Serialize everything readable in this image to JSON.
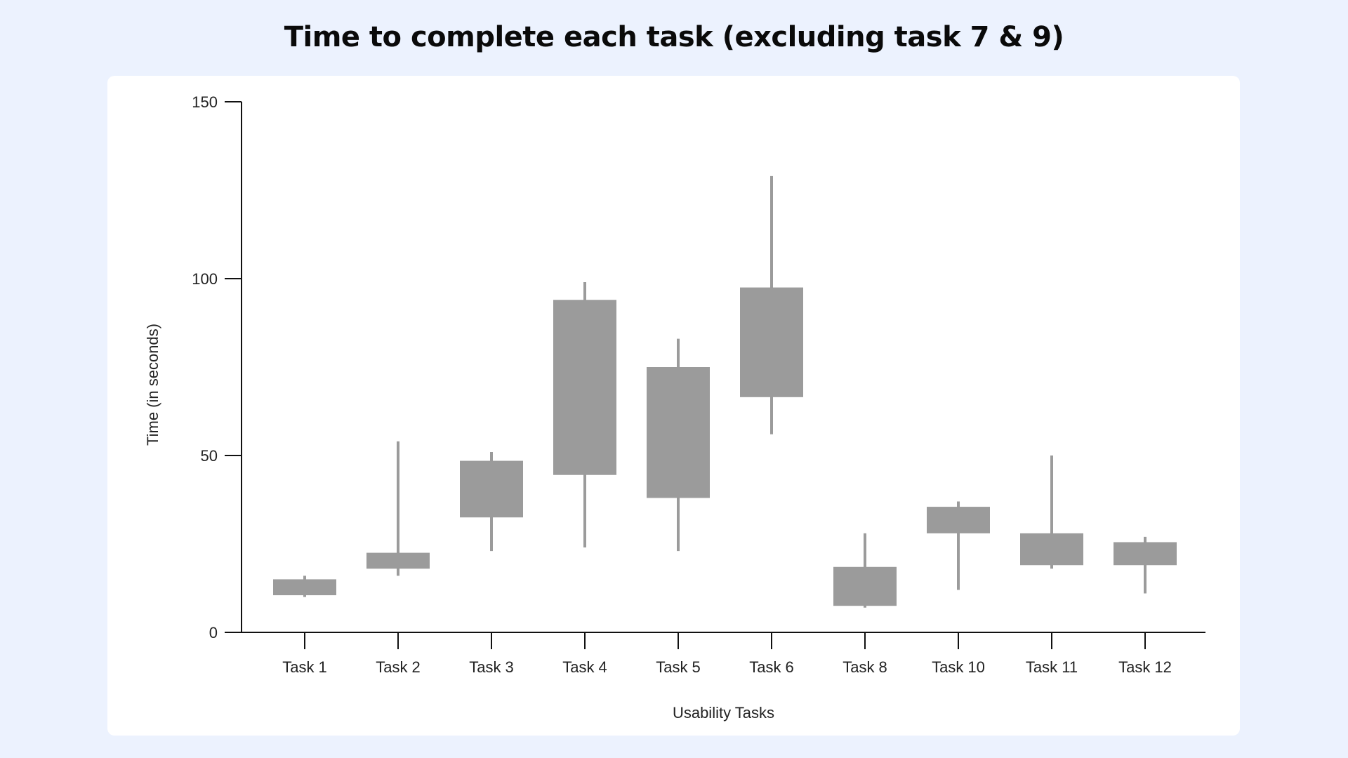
{
  "page": {
    "title": "Time to complete each task (excluding task 7 & 9)"
  },
  "chart_data": {
    "type": "box",
    "title": "Time to complete each task (excluding task 7 & 9)",
    "xlabel": "Usability Tasks",
    "ylabel": "Time (in seconds)",
    "ylim": [
      0,
      150
    ],
    "yticks": [
      0,
      50,
      100,
      150
    ],
    "grid": false,
    "box_color": "#9b9b9b",
    "categories": [
      "Task 1",
      "Task 2",
      "Task 3",
      "Task 4",
      "Task 5",
      "Task 6",
      "Task 8",
      "Task 10",
      "Task 11",
      "Task 12"
    ],
    "boxes": [
      {
        "min": 10,
        "q1": 10.5,
        "q3": 15,
        "max": 16
      },
      {
        "min": 16,
        "q1": 18,
        "q3": 22.5,
        "max": 54
      },
      {
        "min": 23,
        "q1": 32.5,
        "q3": 48.5,
        "max": 51
      },
      {
        "min": 24,
        "q1": 44.5,
        "q3": 94,
        "max": 99
      },
      {
        "min": 23,
        "q1": 38,
        "q3": 75,
        "max": 83
      },
      {
        "min": 56,
        "q1": 66.5,
        "q3": 97.5,
        "max": 129
      },
      {
        "min": 7,
        "q1": 7.5,
        "q3": 18.5,
        "max": 28
      },
      {
        "min": 12,
        "q1": 28,
        "q3": 35.5,
        "max": 37
      },
      {
        "min": 18,
        "q1": 19,
        "q3": 28,
        "max": 50
      },
      {
        "min": 11,
        "q1": 19,
        "q3": 25.5,
        "max": 27
      }
    ]
  }
}
